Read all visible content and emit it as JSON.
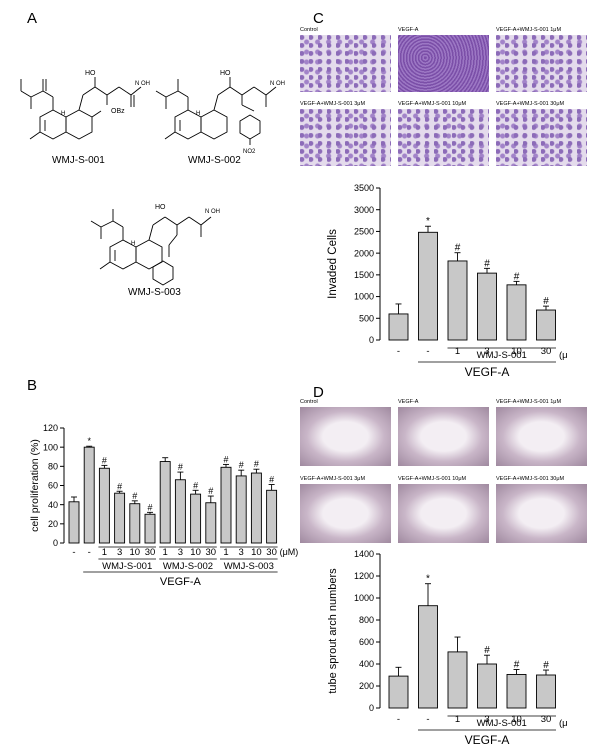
{
  "panels": {
    "A": "A",
    "B": "B",
    "C": "C",
    "D": "D"
  },
  "compounds": {
    "c1": "WMJ-S-001",
    "c2": "WMJ-S-002",
    "c3": "WMJ-S-003",
    "obz": "OBz",
    "no2": "NO2",
    "ho": "HO",
    "nohoh": "N  OH",
    "h": "H",
    "o": "O"
  },
  "c_photos": {
    "labels": [
      "Control",
      "VEGF-A",
      "VEGF-A+WMJ-S-001 1μM",
      "VEGF-A+WMJ-S-001 3μM",
      "VEGF-A+WMJ-S-001 10μM",
      "VEGF-A+WMJ-S-001 30μM"
    ]
  },
  "d_photos": {
    "labels": [
      "Control",
      "VEGF-A",
      "VEGF-A+WMJ-S-001 1μM",
      "VEGF-A+WMJ-S-001 3μM",
      "VEGF-A+WMJ-S-001 10μM",
      "VEGF-A+WMJ-S-001 30μM"
    ]
  },
  "chart_data": [
    {
      "id": "B",
      "type": "bar",
      "ylabel": "cell proliferation (%)",
      "ylim": [
        0,
        120
      ],
      "yticks": [
        0,
        20,
        40,
        60,
        80,
        100,
        120
      ],
      "categories": [
        "-",
        "-",
        "1",
        "3",
        "10",
        "30",
        "1",
        "3",
        "10",
        "30",
        "1",
        "3",
        "10",
        "30"
      ],
      "values": [
        43,
        100,
        78,
        52,
        41,
        30,
        85,
        66,
        51,
        42,
        79,
        70,
        73,
        55
      ],
      "errors": [
        5,
        1,
        3,
        2,
        3,
        2,
        4,
        8,
        4,
        7,
        3,
        6,
        4,
        6
      ],
      "marks": [
        "",
        "*",
        "#",
        "#",
        "#",
        "#",
        "",
        "#",
        "#",
        "#",
        "#",
        "#",
        "#",
        "#"
      ],
      "unit": "(μM)",
      "groups": [
        "WMJ-S-001",
        "WMJ-S-002",
        "WMJ-S-003"
      ],
      "treatment": "VEGF-A"
    },
    {
      "id": "C",
      "type": "bar",
      "ylabel": "Invaded Cells",
      "ylim": [
        0,
        3500
      ],
      "yticks": [
        0,
        500,
        1000,
        1500,
        2000,
        2500,
        3000,
        3500
      ],
      "categories": [
        "-",
        "-",
        "1",
        "3",
        "10",
        "30"
      ],
      "values": [
        600,
        2480,
        1820,
        1540,
        1270,
        690
      ],
      "errors": [
        230,
        140,
        190,
        110,
        80,
        90
      ],
      "marks": [
        "",
        "*",
        "#",
        "#",
        "#",
        "#"
      ],
      "unit": "(μM)",
      "groups": [
        "WMJ-S-001"
      ],
      "treatment": "VEGF-A"
    },
    {
      "id": "D",
      "type": "bar",
      "ylabel": "tube sprout arch numbers",
      "ylim": [
        0,
        1400
      ],
      "yticks": [
        0,
        200,
        400,
        600,
        800,
        1000,
        1200,
        1400
      ],
      "categories": [
        "-",
        "-",
        "1",
        "3",
        "10",
        "30"
      ],
      "values": [
        290,
        930,
        510,
        400,
        305,
        300
      ],
      "errors": [
        80,
        200,
        135,
        80,
        45,
        45
      ],
      "marks": [
        "",
        "*",
        "",
        "#",
        "#",
        "#"
      ],
      "unit": "(μM)",
      "groups": [
        "WMJ-S-001"
      ],
      "treatment": "VEGF-A"
    }
  ]
}
